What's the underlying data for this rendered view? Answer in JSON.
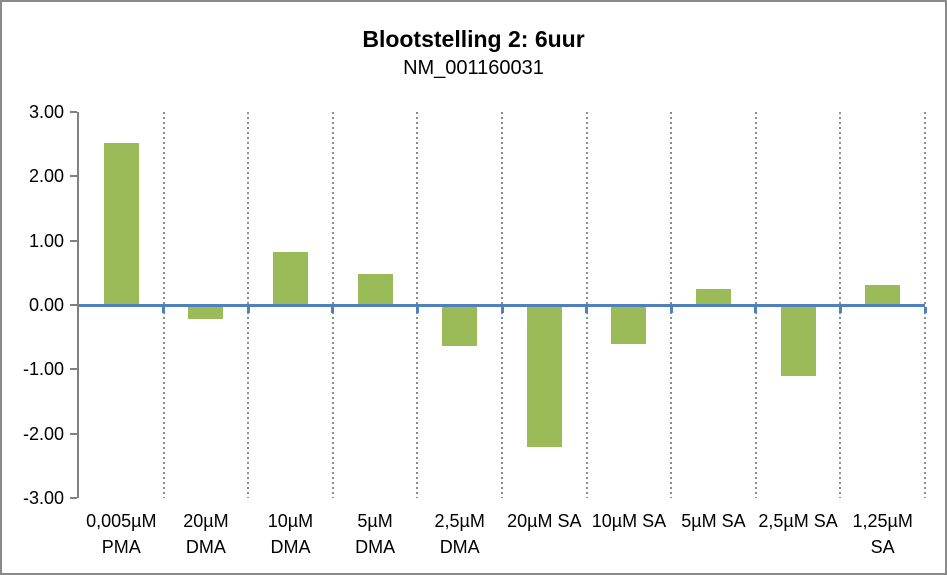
{
  "chart_data": {
    "type": "bar",
    "title": "Blootstelling 2: 6uur",
    "subtitle": "NM_001160031",
    "categories": [
      "0,005µM PMA",
      "20µM DMA",
      "10µM DMA",
      "5µM DMA",
      "2,5µM DMA",
      "20µM SA",
      "10µM SA",
      "5µM SA",
      "2,5µM SA",
      "1,25µM SA"
    ],
    "xtick_lines": [
      [
        "0,005µM",
        "PMA"
      ],
      [
        "20µM",
        "DMA"
      ],
      [
        "10µM",
        "DMA"
      ],
      [
        "5µM",
        "DMA"
      ],
      [
        "2,5µM",
        "DMA"
      ],
      [
        "20µM SA"
      ],
      [
        "10µM SA"
      ],
      [
        "5µM SA"
      ],
      [
        "2,5µM SA"
      ],
      [
        "1,25µM",
        "SA"
      ]
    ],
    "values": [
      2.52,
      -0.21,
      0.83,
      0.48,
      -0.63,
      -2.2,
      -0.6,
      0.25,
      -1.1,
      0.31
    ],
    "ylim": [
      -3,
      3
    ],
    "ytick_labels": [
      "3.00",
      "2.00",
      "1.00",
      "0.00",
      "-1.00",
      "-2.00",
      "-3.00"
    ],
    "xlabel": "",
    "ylabel": "",
    "legend": "none",
    "grid": "vertical dotted category separators",
    "zero_baseline": true
  },
  "colors": {
    "bar": "#9BBB59",
    "zero_line": "#4E80BC",
    "axis": "#808080",
    "gridline": "#8C8C8C",
    "frame": "#8A8A8A",
    "text": "#000000",
    "background": "#FFFFFF"
  }
}
